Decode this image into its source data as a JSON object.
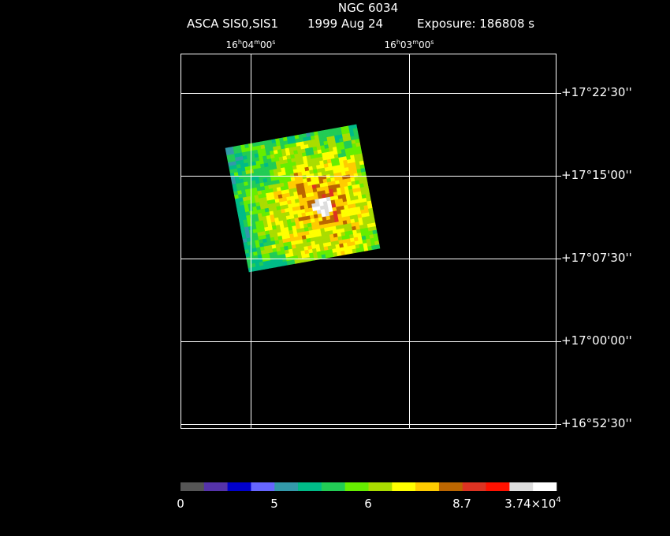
{
  "header": {
    "title": "NGC 6034",
    "instrument": "ASCA SIS0,SIS1",
    "date": "1999 Aug 24",
    "exposure": "Exposure: 186808 s"
  },
  "ra_labels": [
    [
      "16",
      "h",
      "04",
      "m",
      "00",
      "s"
    ],
    [
      "16",
      "h",
      "03",
      "m",
      "00",
      "s"
    ]
  ],
  "dec_labels": [
    "+17°22'30''",
    "+17°15'00''",
    "+17°07'30''",
    "+17°00'00''",
    "+16°52'30''"
  ],
  "colorbar": {
    "colors": [
      "#555555",
      "#5533aa",
      "#0000cc",
      "#6666ff",
      "#3399aa",
      "#00bb88",
      "#22cc55",
      "#66ee00",
      "#aadd00",
      "#ffff00",
      "#ffcc00",
      "#bb6600",
      "#dd3322",
      "#ff1100",
      "#dddddd",
      "#ffffff"
    ],
    "labels": [
      "0",
      "5",
      "6",
      "8.7"
    ],
    "max_label": {
      "mantissa": "3.74×10",
      "exponent": "4"
    }
  }
}
